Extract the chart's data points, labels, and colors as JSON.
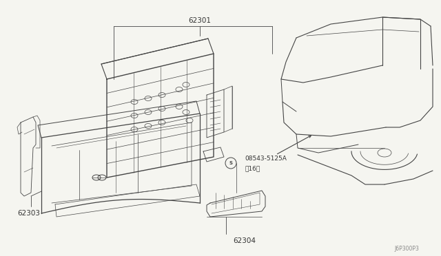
{
  "bg_color": "#f5f5f0",
  "line_color": "#444444",
  "label_color": "#333333",
  "figsize": [
    6.4,
    3.72
  ],
  "dpi": 100,
  "labels": {
    "62301": [
      0.325,
      0.075
    ],
    "62303": [
      0.045,
      0.46
    ],
    "62304": [
      0.49,
      0.885
    ],
    "screw_label": "08543-5125A",
    "screw_sub": "（16）",
    "diagram_id": "J6P300P3"
  }
}
